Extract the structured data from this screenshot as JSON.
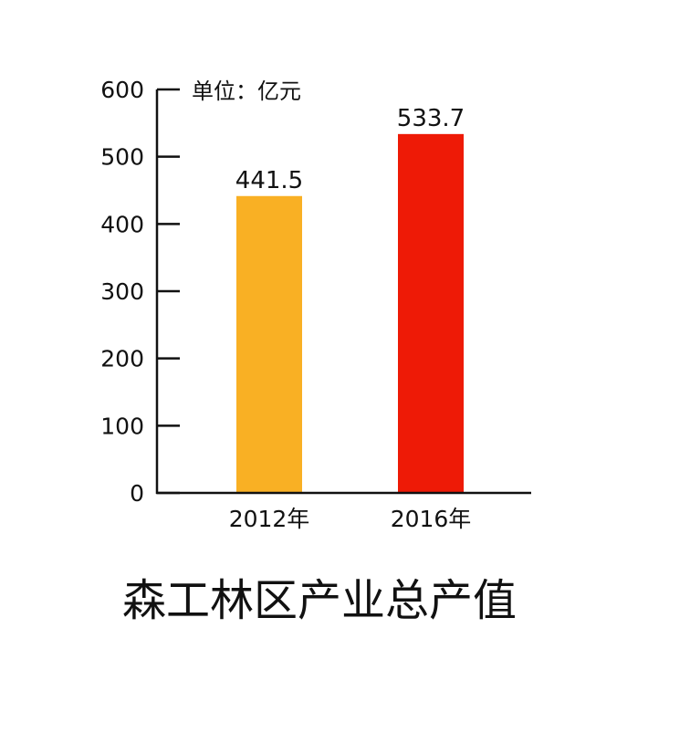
{
  "chart_data": {
    "type": "bar",
    "title": "森工林区产业总产值",
    "unit_label": "单位：亿元",
    "categories": [
      "2012年",
      "2016年"
    ],
    "values": [
      441.5,
      533.7
    ],
    "value_labels": [
      "441.5",
      "533.7"
    ],
    "colors": [
      "#F9B024",
      "#EE1A06"
    ],
    "ylim": [
      0,
      600
    ],
    "yticks": [
      0,
      100,
      200,
      300,
      400,
      500,
      600
    ],
    "ytick_labels": [
      "0",
      "100",
      "200",
      "300",
      "400",
      "500",
      "600"
    ],
    "grid": false,
    "legend": "none"
  }
}
